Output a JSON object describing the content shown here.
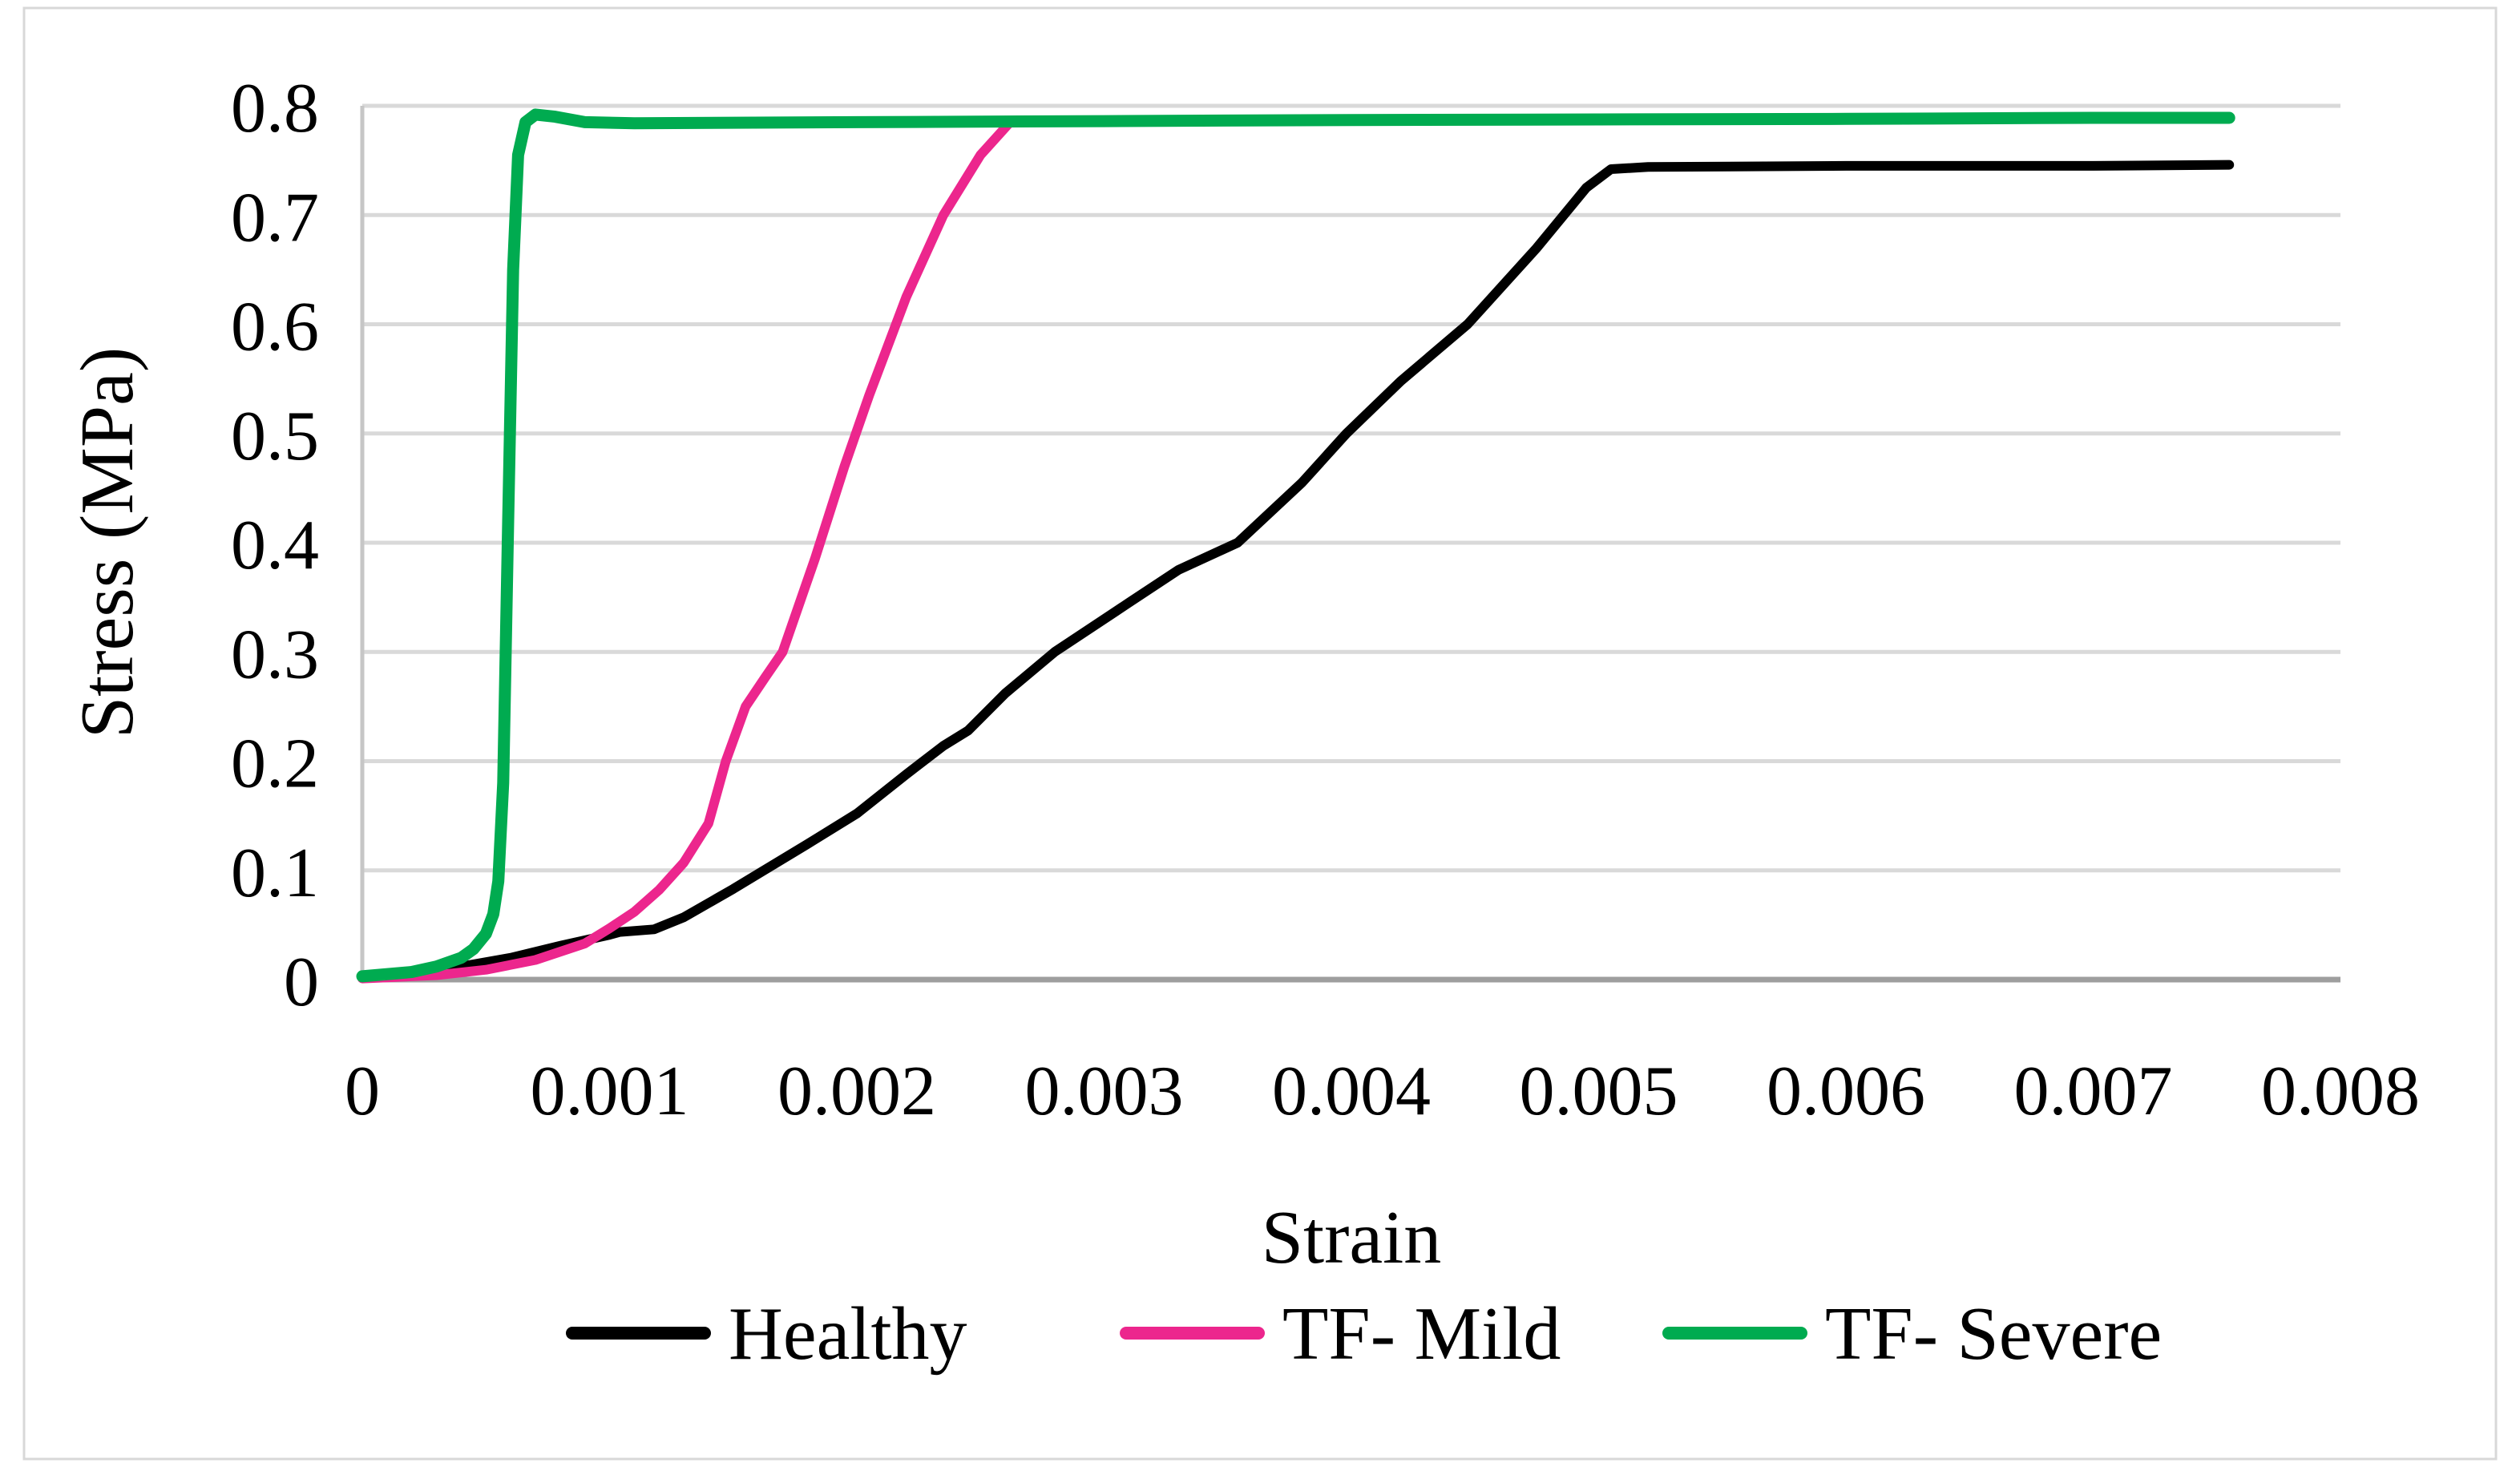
{
  "figure": {
    "border_color": "#d8d8d8",
    "background_color": "#ffffff"
  },
  "chart_data": {
    "type": "line",
    "title": "",
    "xlabel": "Strain",
    "ylabel": "Stress (MPa)",
    "xlim": [
      0,
      0.008
    ],
    "ylim": [
      0,
      0.8
    ],
    "grid": "horizontal-only",
    "legend_position": "bottom-center",
    "colors": {
      "gridline": "#d9d9d9",
      "y_axis_line": "#c6c6c6",
      "x_axis_line": "#9e9e9e",
      "text": "#000000"
    },
    "x_tick_labels": [
      "0",
      "0.001",
      "0.002",
      "0.003",
      "0.004",
      "0.005",
      "0.006",
      "0.007",
      "0.008"
    ],
    "x_tick_values": [
      0,
      0.001,
      0.002,
      0.003,
      0.004,
      0.005,
      0.006,
      0.007,
      0.008
    ],
    "y_tick_labels": [
      "0",
      "0.1",
      "0.2",
      "0.3",
      "0.4",
      "0.5",
      "0.6",
      "0.7",
      "0.8"
    ],
    "y_tick_values": [
      0,
      0.1,
      0.2,
      0.3,
      0.4,
      0.5,
      0.6,
      0.7,
      0.8
    ],
    "series": [
      {
        "name": "Healthy",
        "color": "#000000",
        "points": [
          [
            0,
            0.002
          ],
          [
            0.0003,
            0.008
          ],
          [
            0.0006,
            0.02
          ],
          [
            0.0008,
            0.031
          ],
          [
            0.001,
            0.041
          ],
          [
            0.00104,
            0.0435
          ],
          [
            0.00118,
            0.046
          ],
          [
            0.0013,
            0.057
          ],
          [
            0.0015,
            0.083
          ],
          [
            0.0018,
            0.124
          ],
          [
            0.002,
            0.152
          ],
          [
            0.0022,
            0.188
          ],
          [
            0.00235,
            0.214
          ],
          [
            0.00245,
            0.228
          ],
          [
            0.0026,
            0.262
          ],
          [
            0.0028,
            0.3
          ],
          [
            0.0031,
            0.345
          ],
          [
            0.0033,
            0.375
          ],
          [
            0.00354,
            0.4
          ],
          [
            0.0038,
            0.455
          ],
          [
            0.00398,
            0.5
          ],
          [
            0.0042,
            0.548
          ],
          [
            0.00447,
            0.6
          ],
          [
            0.00475,
            0.67
          ],
          [
            0.00495,
            0.725
          ],
          [
            0.00505,
            0.742
          ],
          [
            0.0052,
            0.744
          ],
          [
            0.006,
            0.745
          ],
          [
            0.007,
            0.745
          ],
          [
            0.00755,
            0.746
          ]
        ]
      },
      {
        "name": "TF- Mild",
        "color": "#ec268d",
        "points": [
          [
            0,
            0.001
          ],
          [
            0.0003,
            0.004
          ],
          [
            0.0005,
            0.009
          ],
          [
            0.0007,
            0.018
          ],
          [
            0.0009,
            0.033
          ],
          [
            0.001,
            0.047
          ],
          [
            0.0011,
            0.062
          ],
          [
            0.0012,
            0.082
          ],
          [
            0.0013,
            0.107
          ],
          [
            0.0014,
            0.143
          ],
          [
            0.00147,
            0.2
          ],
          [
            0.00155,
            0.25
          ],
          [
            0.00163,
            0.277
          ],
          [
            0.0017,
            0.3
          ],
          [
            0.00183,
            0.385
          ],
          [
            0.00195,
            0.47
          ],
          [
            0.00205,
            0.535
          ],
          [
            0.0022,
            0.625
          ],
          [
            0.00235,
            0.7
          ],
          [
            0.0025,
            0.755
          ],
          [
            0.00262,
            0.785
          ]
        ]
      },
      {
        "name": "TF- Severe",
        "color": "#00ab50",
        "points": [
          [
            0,
            0.003
          ],
          [
            0.0002,
            0.007
          ],
          [
            0.0003,
            0.012
          ],
          [
            0.0004,
            0.02
          ],
          [
            0.00045,
            0.028
          ],
          [
            0.0005,
            0.042
          ],
          [
            0.00053,
            0.06
          ],
          [
            0.00055,
            0.09
          ],
          [
            0.00057,
            0.18
          ],
          [
            0.00059,
            0.42
          ],
          [
            0.00061,
            0.65
          ],
          [
            0.00063,
            0.755
          ],
          [
            0.00066,
            0.785
          ],
          [
            0.0007,
            0.792
          ],
          [
            0.00078,
            0.79
          ],
          [
            0.0009,
            0.785
          ],
          [
            0.0011,
            0.784
          ],
          [
            0.0015,
            0.7845
          ],
          [
            0.002,
            0.785
          ],
          [
            0.003,
            0.786
          ],
          [
            0.004,
            0.787
          ],
          [
            0.005,
            0.7875
          ],
          [
            0.006,
            0.788
          ],
          [
            0.007,
            0.789
          ],
          [
            0.00755,
            0.789
          ]
        ]
      }
    ]
  }
}
